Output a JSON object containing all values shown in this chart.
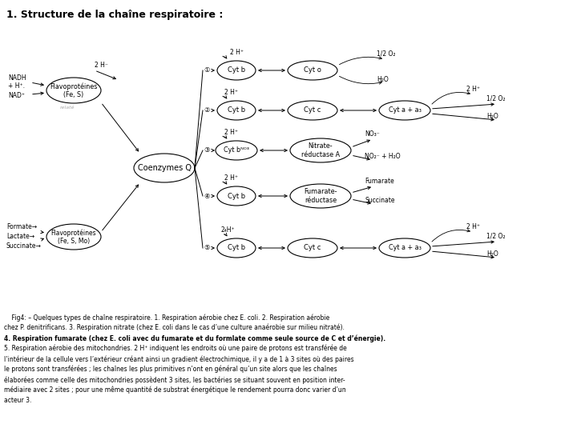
{
  "title": "1. Structure de la chaîne respiratoire :",
  "bg_color": "#ffffff",
  "caption_lines": [
    "    Fig4: – Quelques types de chaîne respiratoire. 1. Respiration aérobie chez E. coli. 2. Respiration aérobie",
    "chez P. denitrificans. 3. Respiration nitrate (chez E. coli dans le cas d’une culture anaérobie sur milieu nitraté).",
    "4. Respiration fumarate (chez E. coli avec du fumarate et du formlate comme seule source de C et d’énergie).",
    "5. Respiration aérobie des mitochondries. 2 H⁺ indiquent les endroits où une paire de protons est transférée de",
    "l’intérieur de la cellule vers l’extérieur créant ainsi un gradient électrochimique, il y a de 1 à 3 sites où des paires",
    "le protons sont transférées ; les chaînes les plus primitives n’ont en général qu’un site alors que les chaînes",
    "élaborées comme celle des mitochondries possèdent 3 sites, les bactéries se situant souvent en position inter-",
    "médiaire avec 2 sites ; pour une même quantité de substrat énergétique le rendement pourra donc varier d’un",
    "acteur 3."
  ]
}
